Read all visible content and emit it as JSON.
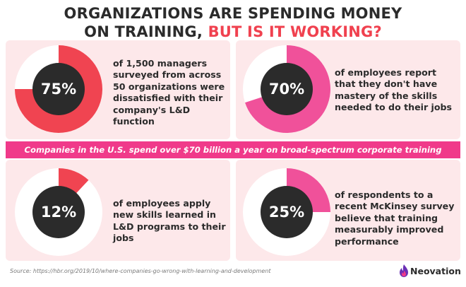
{
  "header": {
    "title_line1": "ORGANIZATIONS ARE SPENDING MONEY",
    "title_line2_part1": "ON TRAINING, ",
    "title_line2_accent": "BUT IS IT WORKING?"
  },
  "stats": [
    {
      "percent_label": "75%",
      "value": 75,
      "color": "#f04451",
      "text": "of 1,500 managers surveyed from across 50 organizations were dissatisfied with their company's L&D function"
    },
    {
      "percent_label": "70%",
      "value": 70,
      "color": "#f0519a",
      "text": "of employees report that they don't have mastery of the skills needed to do their jobs"
    },
    {
      "percent_label": "12%",
      "value": 12,
      "color": "#f04451",
      "text": "of employees apply new skills learned in L&D programs to their jobs"
    },
    {
      "percent_label": "25%",
      "value": 25,
      "color": "#f0519a",
      "text": "of respondents to a recent McKinsey survey believe that training measurably improved performance"
    }
  ],
  "banner": {
    "text": "Companies in the U.S. spend over $70 billion a year on broad-spectrum corporate training"
  },
  "footer": {
    "source": "Source: https://hbr.org/2019/10/where-companies-go-wrong-with-learning-and-development",
    "brand": "Neovation"
  },
  "colors": {
    "card_bg": "#fde8ea",
    "banner_bg": "#f03a8a",
    "accent": "#f0414f",
    "dark": "#2b2b2b"
  }
}
